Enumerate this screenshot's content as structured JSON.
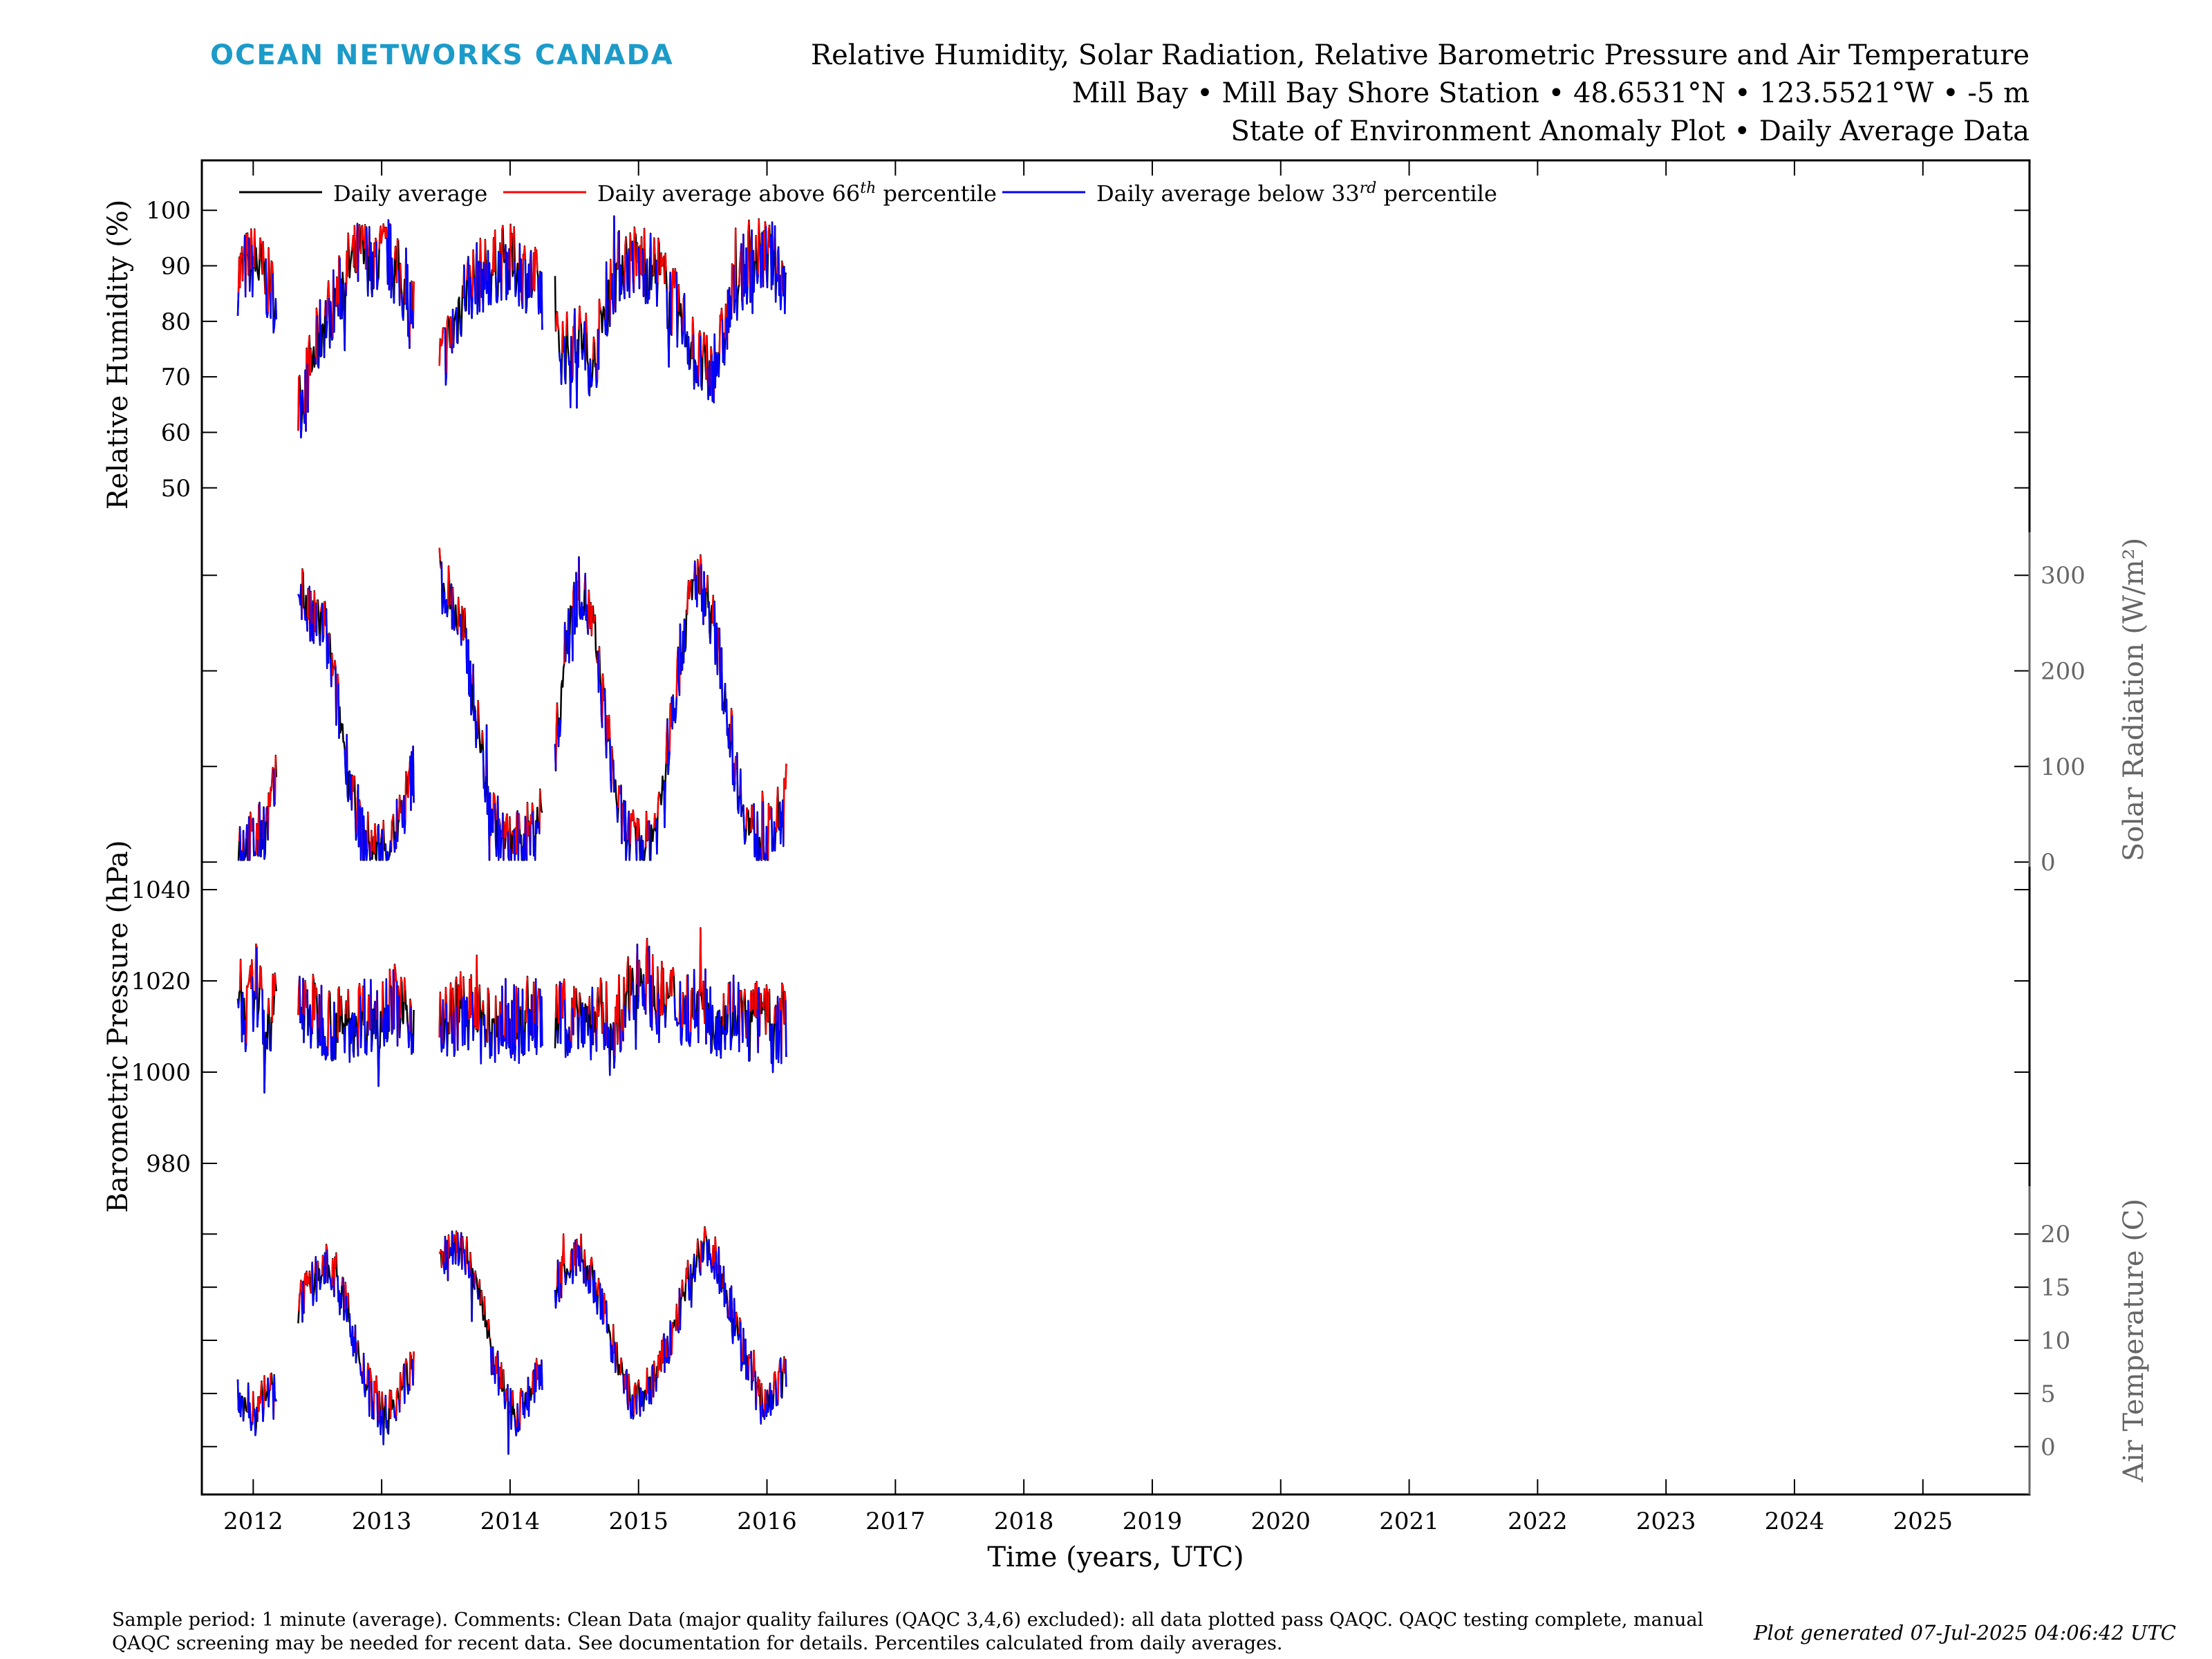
{
  "logo": "OCEAN NETWORKS CANADA",
  "header": {
    "line1": "Relative Humidity, Solar Radiation, Relative Barometric Pressure and Air Temperature",
    "line2": "Mill Bay • Mill Bay Shore Station • 48.6531°N • 123.5521°W • -5 m",
    "line3": "State of Environment Anomaly Plot • Daily Average Data"
  },
  "legend": {
    "daily": "Daily average",
    "above_pre": "Daily average above 66",
    "above_sup": "th",
    "above_post": " percentile",
    "below_pre": "Daily average below 33",
    "below_sup": "rd",
    "below_post": " percentile"
  },
  "colors": {
    "daily": "#000000",
    "above": "#ff0000",
    "below": "#0000ff",
    "logo": "#1c9bc9",
    "right_axis": "#666666"
  },
  "footnote": {
    "line1": "Sample period: 1 minute (average). Comments: Clean Data (major quality failures (QAQC 3,4,6) excluded): all data plotted pass QAQC. QAQC testing complete, manual",
    "line2": "QAQC screening may be needed for recent data. See documentation for details. Percentiles calculated from daily averages."
  },
  "generated": "Plot generated 07-Jul-2025 04:06:42 UTC",
  "chart_data": {
    "type": "line",
    "x_axis": {
      "label": "Time (years, UTC)",
      "range": [
        2011.6,
        2025.83
      ],
      "ticks": [
        "2012",
        "2013",
        "2014",
        "2015",
        "2016",
        "2017",
        "2018",
        "2019",
        "2020",
        "2021",
        "2022",
        "2023",
        "2024",
        "2025"
      ],
      "grid": false
    },
    "panels": [
      {
        "name": "humidity",
        "ylabel": "Relative Humidity (%)",
        "axis_side": "left",
        "ylim": [
          42,
          106
        ],
        "ticks": [
          "50",
          "60",
          "70",
          "80",
          "90",
          "100"
        ],
        "segments": [
          {
            "x": [
              2011.88,
              2011.95,
              2012.02,
              2012.1,
              2012.18
            ],
            "y": [
              88,
              90,
              91,
              87,
              84
            ]
          },
          {
            "x": [
              2012.35,
              2012.45,
              2012.55,
              2012.65,
              2012.75,
              2012.85,
              2012.95,
              2013.05,
              2013.15,
              2013.25
            ],
            "y": [
              64,
              72,
              80,
              84,
              90,
              92,
              91,
              92,
              87,
              82
            ]
          },
          {
            "x": [
              2013.45,
              2013.55,
              2013.65,
              2013.75,
              2013.85,
              2013.95,
              2014.05,
              2014.15,
              2014.25
            ],
            "y": [
              72,
              78,
              86,
              88,
              89,
              91,
              90,
              88,
              85
            ]
          },
          {
            "x": [
              2014.35,
              2014.45,
              2014.55,
              2014.65,
              2014.75,
              2014.85,
              2014.95,
              2015.05,
              2015.15,
              2015.25,
              2015.35,
              2015.45,
              2015.55,
              2015.65,
              2015.75,
              2015.85,
              2015.95,
              2016.05,
              2016.15
            ],
            "y": [
              76,
              75,
              77,
              72,
              84,
              90,
              91,
              90,
              89,
              84,
              80,
              73,
              70,
              76,
              86,
              90,
              92,
              91,
              87
            ]
          }
        ]
      },
      {
        "name": "solar",
        "ylabel": "Solar Radiation (W/m²)",
        "axis_side": "right",
        "ylim": [
          -5,
          345
        ],
        "ticks": [
          "0",
          "100",
          "200",
          "300"
        ],
        "segments": [
          {
            "x": [
              2011.88,
              2011.95,
              2012.02,
              2012.1,
              2012.18
            ],
            "y": [
              20,
              18,
              22,
              40,
              80
            ]
          },
          {
            "x": [
              2012.35,
              2012.45,
              2012.55,
              2012.65,
              2012.75,
              2012.85,
              2012.95,
              2013.05,
              2013.15,
              2013.25
            ],
            "y": [
              300,
              250,
              250,
              170,
              90,
              25,
              12,
              20,
              45,
              95
            ]
          },
          {
            "x": [
              2013.45,
              2013.55,
              2013.65,
              2013.75,
              2013.85,
              2013.95,
              2014.05,
              2014.15,
              2014.25
            ],
            "y": [
              300,
              270,
              230,
              140,
              55,
              20,
              18,
              30,
              55
            ]
          },
          {
            "x": [
              2014.35,
              2014.45,
              2014.55,
              2014.65,
              2014.75,
              2014.85,
              2014.95,
              2015.05,
              2015.15,
              2015.25,
              2015.35,
              2015.45,
              2015.55,
              2015.65,
              2015.75,
              2015.85,
              2015.95,
              2016.05,
              2016.15
            ],
            "y": [
              110,
              250,
              290,
              240,
              140,
              50,
              20,
              15,
              45,
              140,
              240,
              300,
              270,
              200,
              100,
              40,
              20,
              30,
              70
            ]
          }
        ]
      },
      {
        "name": "pressure",
        "ylabel": "Barometric Pressure (hPa)",
        "axis_side": "left",
        "ylim": [
          975,
          1045
        ],
        "ticks": [
          "980",
          "1000",
          "1020",
          "1040"
        ],
        "segments": [
          {
            "x": [
              2011.88,
              2011.95,
              2012.02,
              2012.1,
              2012.18
            ],
            "y": [
              1018,
              1012,
              1020,
              1010,
              1015
            ]
          },
          {
            "x": [
              2012.35,
              2012.45,
              2012.55,
              2012.65,
              2012.75,
              2012.85,
              2012.95,
              2013.05,
              2013.15,
              2013.25
            ],
            "y": [
              1015,
              1013,
              1012,
              1010,
              1011,
              1013,
              1012,
              1016,
              1014,
              1012
            ]
          },
          {
            "x": [
              2013.45,
              2013.55,
              2013.65,
              2013.75,
              2013.85,
              2013.95,
              2014.05,
              2014.15,
              2014.25
            ],
            "y": [
              1010,
              1012,
              1014,
              1011,
              1009,
              1012,
              1010,
              1013,
              1011
            ]
          },
          {
            "x": [
              2014.35,
              2014.45,
              2014.55,
              2014.65,
              2014.75,
              2014.85,
              2014.95,
              2015.05,
              2015.15,
              2015.25,
              2015.35,
              2015.45,
              2015.55,
              2015.65,
              2015.75,
              2015.85,
              2015.95,
              2016.05,
              2016.15
            ],
            "y": [
              1011,
              1012,
              1013,
              1011,
              1012,
              1008,
              1020,
              1022,
              1015,
              1016,
              1014,
              1015,
              1013,
              1012,
              1014,
              1010,
              1013,
              1008,
              1012
            ]
          }
        ]
      },
      {
        "name": "temperature",
        "ylabel": "Air Temperature (C)",
        "axis_side": "right",
        "ylim": [
          -4.5,
          24.5
        ],
        "ticks": [
          "0",
          "5",
          "10",
          "15",
          "20"
        ],
        "segments": [
          {
            "x": [
              2011.88,
              2011.95,
              2012.02,
              2012.1,
              2012.18
            ],
            "y": [
              5,
              4,
              3,
              5,
              6
            ]
          },
          {
            "x": [
              2012.35,
              2012.45,
              2012.55,
              2012.65,
              2012.75,
              2012.85,
              2012.95,
              2013.05,
              2013.15,
              2013.25
            ],
            "y": [
              13,
              15,
              17,
              16,
              12,
              7,
              4,
              3,
              5,
              8
            ]
          },
          {
            "x": [
              2013.45,
              2013.55,
              2013.65,
              2013.75,
              2013.85,
              2013.95,
              2014.05,
              2014.15,
              2014.25
            ],
            "y": [
              17,
              19,
              18,
              15,
              9,
              5,
              3,
              5,
              7
            ]
          },
          {
            "x": [
              2014.35,
              2014.45,
              2014.55,
              2014.65,
              2014.75,
              2014.85,
              2014.95,
              2015.05,
              2015.15,
              2015.25,
              2015.35,
              2015.45,
              2015.55,
              2015.65,
              2015.75,
              2015.85,
              2015.95,
              2016.05,
              2016.15
            ],
            "y": [
              15,
              17,
              18,
              15,
              12,
              7,
              4,
              5,
              7,
              10,
              14,
              18,
              19,
              16,
              12,
              8,
              4,
              5,
              7
            ]
          }
        ]
      }
    ]
  }
}
